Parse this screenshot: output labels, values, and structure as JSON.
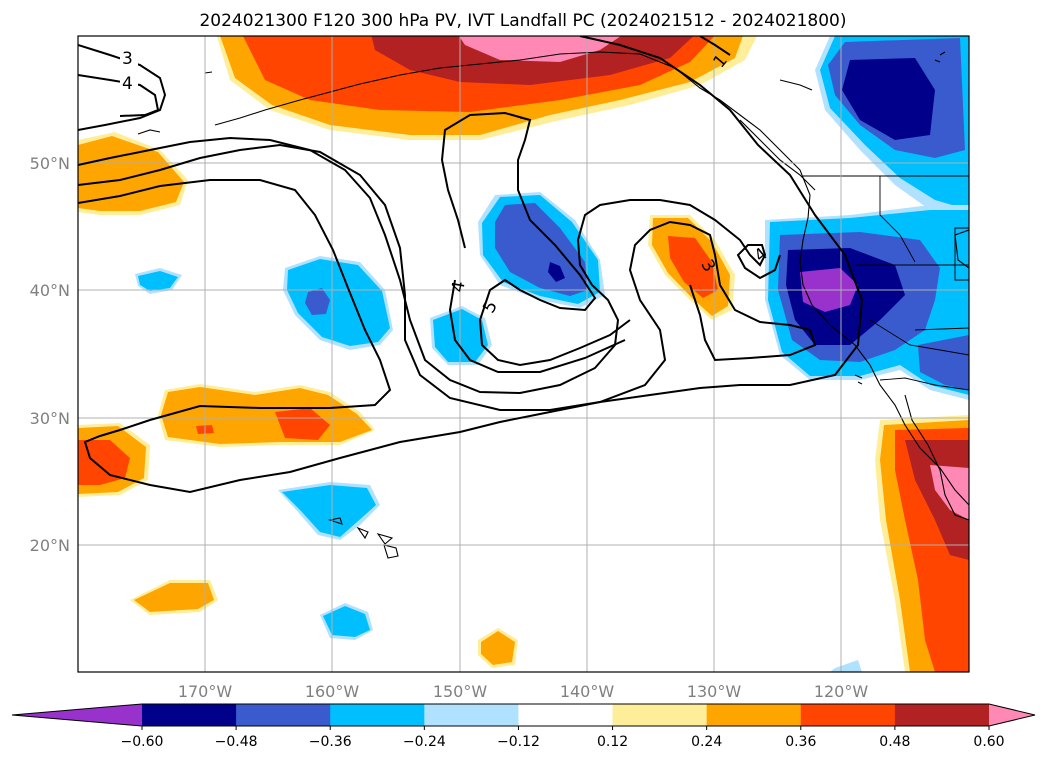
{
  "chart_data": {
    "type": "heatmap",
    "title": "2024021300 F120 300 hPa PV, IVT Landfall PC (2024021512 - 2024021800)",
    "map": {
      "projection": "PlateCarree",
      "lon_range": [
        -180,
        -110
      ],
      "lat_range": [
        10,
        60
      ],
      "grid": true,
      "x_ticks": [
        {
          "value": -170,
          "label": "170°W"
        },
        {
          "value": -160,
          "label": "160°W"
        },
        {
          "value": -150,
          "label": "150°W"
        },
        {
          "value": -140,
          "label": "140°W"
        },
        {
          "value": -130,
          "label": "130°W"
        },
        {
          "value": -120,
          "label": "120°W"
        }
      ],
      "y_ticks": [
        {
          "value": 20,
          "label": "20°N"
        },
        {
          "value": 30,
          "label": "30°N"
        },
        {
          "value": 40,
          "label": "40°N"
        },
        {
          "value": 50,
          "label": "50°N"
        }
      ]
    },
    "colorbar": {
      "orientation": "horizontal",
      "extend": "both",
      "levels": [
        -0.6,
        -0.48,
        -0.36,
        -0.24,
        -0.12,
        0.12,
        0.24,
        0.36,
        0.48,
        0.6
      ],
      "tick_labels": [
        "−0.60",
        "−0.48",
        "−0.36",
        "−0.24",
        "−0.12",
        "0.12",
        "0.24",
        "0.36",
        "0.48",
        "0.60"
      ],
      "colors": [
        "#9932cc",
        "#00008b",
        "#3a5bcd",
        "#00bfff",
        "#b0e2ff",
        "#ffffff",
        "#ffee99",
        "#ffa500",
        "#ff4500",
        "#b22222",
        "#ff88b4"
      ]
    },
    "pv_contours": {
      "levels": [
        1,
        3,
        4,
        5
      ],
      "labels": [
        "1",
        "3",
        "4",
        "4",
        "3",
        "4",
        "5"
      ]
    },
    "shaded_regions": [
      {
        "name": "aleutian-positive",
        "center": [
          -155,
          58
        ],
        "peak": 0.6
      },
      {
        "name": "northwest-canada-negative",
        "center": [
          -117,
          56
        ],
        "peak": -0.55
      },
      {
        "name": "california-negative",
        "center": [
          -121,
          40
        ],
        "peak": -0.65
      },
      {
        "name": "mexico-positive",
        "center": [
          -113,
          24
        ],
        "peak": 0.62
      },
      {
        "name": "gulf-of-alaska-negative",
        "center": [
          -143,
          42
        ],
        "peak": -0.5
      },
      {
        "name": "ne-pacific-positive",
        "center": [
          -133,
          42
        ],
        "peak": 0.4
      },
      {
        "name": "central-pacific-negative",
        "center": [
          -162,
          39
        ],
        "peak": -0.4
      },
      {
        "name": "subtropical-positive-west",
        "center": [
          -163,
          30
        ],
        "peak": 0.4
      },
      {
        "name": "hawaii-negative",
        "center": [
          -158,
          24
        ],
        "peak": -0.3
      }
    ]
  }
}
